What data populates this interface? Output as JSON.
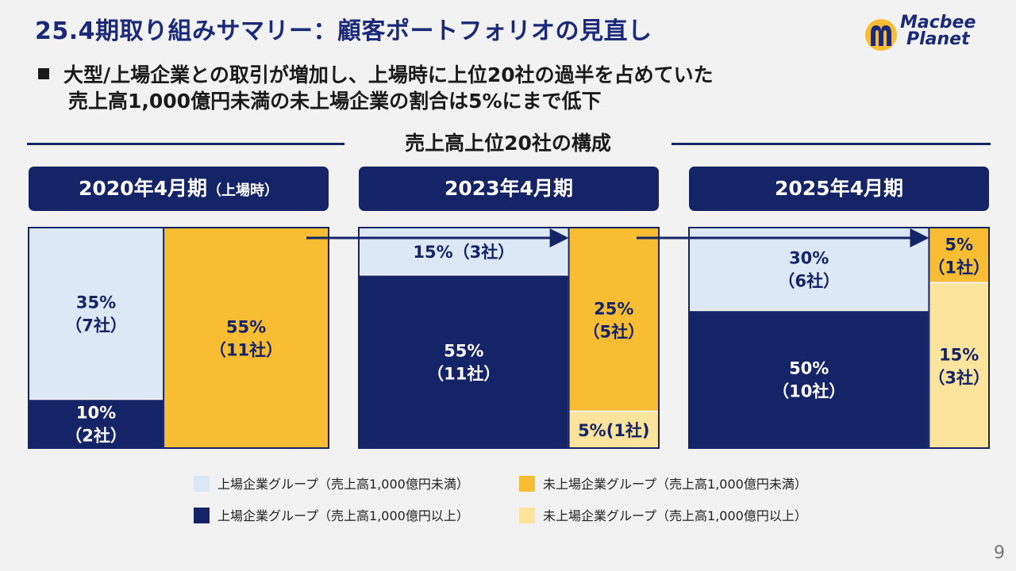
{
  "title": "25.4期取り組みサマリー：顧客ポートフォリオの見直し",
  "logo": {
    "line1": "Macbee",
    "line2": "Planet"
  },
  "lead": {
    "line1": "大型/上場企業との取引が増加し、上場時に上位20社の過半を占めていた",
    "line2": "売上高1,000億円未満の未上場企業の割合は5%にまで低下"
  },
  "section_title": "売上高上位20社の構成",
  "periods": [
    {
      "label": "2020年4月期",
      "sub": "（上場時）"
    },
    {
      "label": "2023年4月期",
      "sub": ""
    },
    {
      "label": "2025年4月期",
      "sub": ""
    }
  ],
  "legend": [
    {
      "label": "上場企業グループ（売上高1,000億円未満）",
      "color": "#dce8f6"
    },
    {
      "label": "未上場企業グループ（売上高1,000億円未満）",
      "color": "#f8bd33"
    },
    {
      "label": "上場企業グループ（売上高1,000億円以上）",
      "color": "#142466"
    },
    {
      "label": "未上場企業グループ（売上高1,000億円以上）",
      "color": "#fde49c"
    }
  ],
  "page_number": "9",
  "colors": {
    "navy": "#142466",
    "light_blue": "#dce8f6",
    "gold": "#f8bd33",
    "pale_yellow": "#fde49c"
  },
  "chart_data": {
    "type": "bar",
    "title": "売上高上位20社の構成",
    "categories": [
      "2020年4月期",
      "2023年4月期",
      "2025年4月期"
    ],
    "series": [
      {
        "name": "上場企業グループ（売上高1,000億円以上）",
        "values": [
          10,
          55,
          50
        ],
        "companies": [
          2,
          11,
          10
        ],
        "labels": [
          "10%",
          "55%",
          "50%"
        ],
        "company_labels": [
          "（2社）",
          "（11社）",
          "（10社）"
        ]
      },
      {
        "name": "上場企業グループ（売上高1,000億円未満）",
        "values": [
          35,
          15,
          30
        ],
        "companies": [
          7,
          3,
          6
        ],
        "labels": [
          "35%",
          "15%（3社）",
          "30%"
        ],
        "company_labels": [
          "（7社）",
          "",
          "（6社）"
        ]
      },
      {
        "name": "未上場企業グループ（売上高1,000億円以上）",
        "values": [
          0,
          5,
          15
        ],
        "companies": [
          0,
          1,
          3
        ],
        "labels": [
          "",
          "5%(1社)",
          "15%"
        ],
        "company_labels": [
          "",
          "",
          "（3社）"
        ]
      },
      {
        "name": "未上場企業グループ（売上高1,000億円未満）",
        "values": [
          55,
          25,
          5
        ],
        "companies": [
          11,
          5,
          1
        ],
        "labels": [
          "55%",
          "25%",
          "5%"
        ],
        "company_labels": [
          "（11社）",
          "（5社）",
          "（1社）"
        ]
      }
    ],
    "ylim": [
      0,
      100
    ]
  }
}
